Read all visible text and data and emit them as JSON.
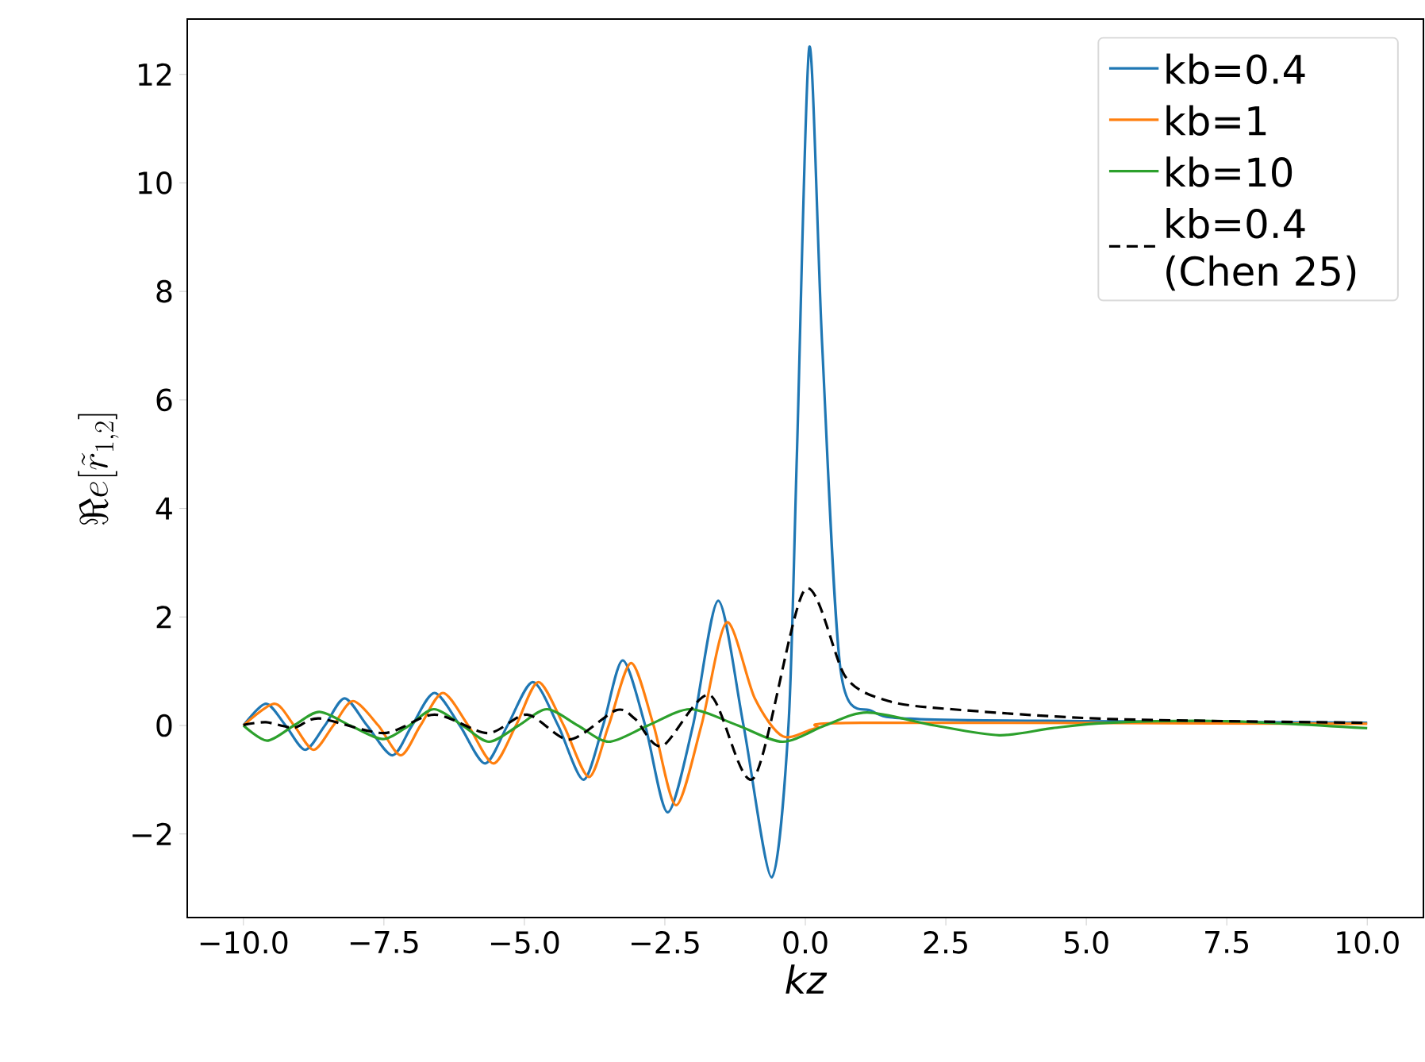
{
  "chart_data": {
    "type": "line",
    "xlabel": "kz",
    "ylabel": "\\Re e[\\tilde{r}_{1,2}]",
    "xlim": [
      -11,
      11
    ],
    "ylim": [
      -3.54,
      13.02
    ],
    "xticks": [
      {
        "value": -10,
        "label": "−10.0"
      },
      {
        "value": -7.5,
        "label": "−7.5"
      },
      {
        "value": -5,
        "label": "−5.0"
      },
      {
        "value": -2.5,
        "label": "−2.5"
      },
      {
        "value": 0,
        "label": "0.0"
      },
      {
        "value": 2.5,
        "label": "2.5"
      },
      {
        "value": 5,
        "label": "5.0"
      },
      {
        "value": 7.5,
        "label": "7.5"
      },
      {
        "value": 10,
        "label": "10.0"
      }
    ],
    "yticks": [
      {
        "value": -2,
        "label": "−2"
      },
      0,
      2,
      4,
      6,
      8,
      10,
      12
    ],
    "legend": "top right",
    "grid": false,
    "series": [
      {
        "name": "kb=0.4",
        "color": "#1f77b4",
        "line_style": "solid",
        "x": [
          -10,
          -9.6,
          -9.25,
          -8.9,
          -8.55,
          -8.2,
          -7.8,
          -7.35,
          -7.0,
          -6.6,
          -6.15,
          -5.7,
          -5.3,
          -4.85,
          -4.4,
          -3.95,
          -3.6,
          -3.25,
          -2.85,
          -2.45,
          -2.0,
          -1.55,
          -1.1,
          -0.6,
          -0.3,
          -0.15,
          0.07,
          0.3,
          0.63,
          1.2,
          2,
          5,
          10
        ],
        "values": [
          0,
          0.4,
          0,
          -0.45,
          0,
          0.5,
          0,
          -0.55,
          0,
          0.6,
          0,
          -0.7,
          0,
          0.8,
          0,
          -1.0,
          0,
          1.2,
          0,
          -1.6,
          0,
          2.3,
          0,
          -2.8,
          0,
          5,
          12.5,
          7,
          1.0,
          0.26,
          0.12,
          0.08,
          0.05
        ]
      },
      {
        "name": "kb=1",
        "color": "#ff7f0e",
        "line_style": "solid",
        "x": [
          -10,
          -9.45,
          -9.1,
          -8.75,
          -8.4,
          -8.05,
          -7.6,
          -7.2,
          -6.85,
          -6.45,
          -6.0,
          -5.55,
          -5.15,
          -4.75,
          -4.3,
          -3.85,
          -3.5,
          -3.1,
          -2.7,
          -2.3,
          -1.85,
          -1.4,
          -0.9,
          -0.4,
          0.2,
          1,
          10
        ],
        "values": [
          0,
          0.4,
          0,
          -0.45,
          0,
          0.45,
          0,
          -0.55,
          0,
          0.6,
          0,
          -0.7,
          0,
          0.8,
          0,
          -0.95,
          0,
          1.15,
          0,
          -1.47,
          0,
          1.9,
          0.5,
          -0.2,
          -0.05,
          0.05,
          0.03
        ]
      },
      {
        "name": "kb=10",
        "color": "#2ca02c",
        "line_style": "solid",
        "x": [
          -10,
          -9.58,
          -9.1,
          -8.65,
          -8.1,
          -7.52,
          -7.05,
          -6.61,
          -6.1,
          -5.63,
          -5.1,
          -4.6,
          -4.05,
          -3.5,
          -2.8,
          -2.05,
          -1.2,
          -0.4,
          0.35,
          1.1,
          2.3,
          3.45,
          4.4,
          5.4,
          7.5,
          10
        ],
        "values": [
          0,
          -0.28,
          0,
          0.25,
          0,
          -0.25,
          0,
          0.3,
          0,
          -0.3,
          0,
          0.3,
          0,
          -0.3,
          0,
          0.3,
          0,
          -0.3,
          0,
          0.24,
          0,
          -0.18,
          -0.05,
          0.05,
          0.08,
          -0.05
        ]
      },
      {
        "name": "kb=0.4 (Chen 25)",
        "color": "#000000",
        "line_style": "dashed",
        "x": [
          -10,
          -9.6,
          -9.1,
          -8.65,
          -7.5,
          -6.6,
          -5.65,
          -4.95,
          -4.2,
          -3.37,
          -3.03,
          -2.55,
          -1.7,
          -0.92,
          -0.01,
          0.72,
          1.48,
          2.6,
          5.4,
          10
        ],
        "values": [
          0.01,
          0.06,
          -0.04,
          0.13,
          -0.14,
          0.2,
          -0.14,
          0.2,
          -0.26,
          0.28,
          0.12,
          -0.38,
          0.56,
          -0.97,
          2.5,
          0.89,
          0.45,
          0.3,
          0.12,
          0.05
        ]
      }
    ]
  }
}
